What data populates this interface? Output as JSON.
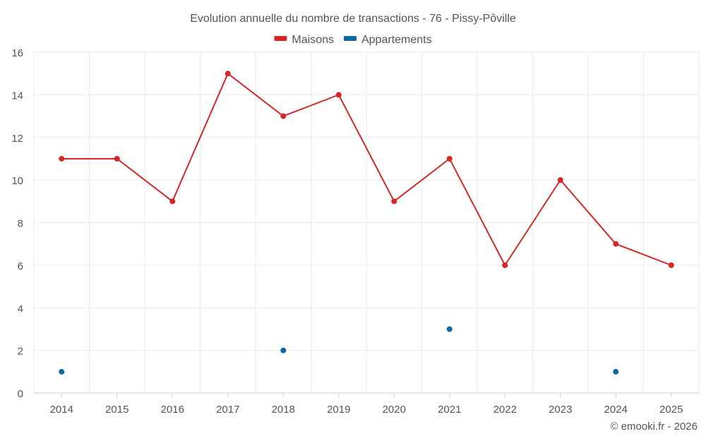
{
  "chart_data": {
    "type": "line",
    "title": "Evolution annuelle du nombre de transactions - 76 - Pissy-Pôville",
    "categories": [
      "2014",
      "2015",
      "2016",
      "2017",
      "2018",
      "2019",
      "2020",
      "2021",
      "2022",
      "2023",
      "2024",
      "2025"
    ],
    "series": [
      {
        "name": "Maisons",
        "color": "#d62728",
        "values": [
          11,
          11,
          9,
          15,
          13,
          14,
          9,
          11,
          6,
          10,
          7,
          6
        ]
      },
      {
        "name": "Appartements",
        "color": "#0b6aa2",
        "values": [
          1,
          null,
          null,
          null,
          2,
          null,
          null,
          3,
          null,
          null,
          1,
          null
        ]
      }
    ],
    "ylim": [
      0,
      16
    ],
    "yticks": [
      0,
      2,
      4,
      6,
      8,
      10,
      12,
      14,
      16
    ],
    "legend_position": "top-center",
    "grid": true
  },
  "credit": "© emooki.fr - 2026"
}
